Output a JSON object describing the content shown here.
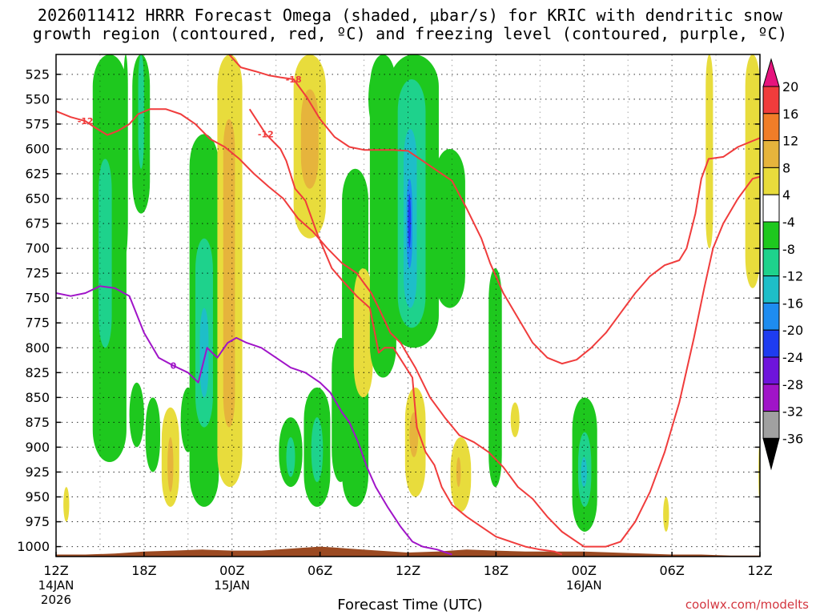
{
  "title_line1": "2026011412 HRRR Forecast Omega (shaded, μbar/s) for KRIC with dendritic snow",
  "title_line2": "growth region (contoured, red, ºC) and freezing level (contoured, purple, ºC)",
  "credit": "coolwx.com/modelts",
  "chart_data": {
    "type": "heatmap",
    "xlabel": "Forecast Time (UTC)",
    "xlim": [
      0,
      48
    ],
    "x_ticks": [
      {
        "hour": 0,
        "label": "12Z",
        "sub1": "14JAN",
        "sub2": "2026"
      },
      {
        "hour": 6,
        "label": "18Z",
        "sub1": "",
        "sub2": ""
      },
      {
        "hour": 12,
        "label": "00Z",
        "sub1": "15JAN",
        "sub2": ""
      },
      {
        "hour": 18,
        "label": "06Z",
        "sub1": "",
        "sub2": ""
      },
      {
        "hour": 24,
        "label": "12Z",
        "sub1": "",
        "sub2": ""
      },
      {
        "hour": 30,
        "label": "18Z",
        "sub1": "",
        "sub2": ""
      },
      {
        "hour": 36,
        "label": "00Z",
        "sub1": "16JAN",
        "sub2": ""
      },
      {
        "hour": 42,
        "label": "06Z",
        "sub1": "",
        "sub2": ""
      },
      {
        "hour": 48,
        "label": "12Z",
        "sub1": "",
        "sub2": ""
      }
    ],
    "ylim": [
      505,
      1010
    ],
    "y_ticks": [
      525,
      550,
      575,
      600,
      625,
      650,
      675,
      700,
      725,
      750,
      775,
      800,
      825,
      850,
      875,
      900,
      925,
      950,
      975,
      1000
    ],
    "grid": true,
    "colorbar": {
      "labels": [
        "20",
        "16",
        "12",
        "8",
        "4",
        "-4",
        "-8",
        "-12",
        "-16",
        "-20",
        "-24",
        "-28",
        "-32",
        "-36"
      ],
      "bands": [
        {
          "from": 16,
          "to": 20,
          "color": "#f03c3c"
        },
        {
          "from": 12,
          "to": 16,
          "color": "#f07d28"
        },
        {
          "from": 8,
          "to": 12,
          "color": "#e6b43c"
        },
        {
          "from": 4,
          "to": 8,
          "color": "#e8dc3c"
        },
        {
          "from": -4,
          "to": 4,
          "color": "#ffffff"
        },
        {
          "from": -8,
          "to": -4,
          "color": "#1ec81e"
        },
        {
          "from": -12,
          "to": -8,
          "color": "#1ed28c"
        },
        {
          "from": -16,
          "to": -12,
          "color": "#1ebec8"
        },
        {
          "from": -20,
          "to": -16,
          "color": "#1e8cf0"
        },
        {
          "from": -24,
          "to": -20,
          "color": "#1e3cf0"
        },
        {
          "from": -28,
          "to": -24,
          "color": "#6e14dc"
        },
        {
          "from": -32,
          "to": -28,
          "color": "#a014c8"
        },
        {
          "from": -36,
          "to": -32,
          "color": "#a0a0a0"
        }
      ],
      "top_arrow_color": "#e6147d",
      "bottom_arrow_color": "#000000"
    },
    "omega_cells": [
      {
        "h0": 2.5,
        "h1": 4.8,
        "p0": 505,
        "p1": 915,
        "v": -6
      },
      {
        "h0": 2.9,
        "h1": 3.8,
        "p0": 610,
        "p1": 800,
        "v": -10
      },
      {
        "h0": 4.6,
        "h1": 4.9,
        "p0": 505,
        "p1": 705,
        "v": -6
      },
      {
        "h0": 5.2,
        "h1": 6.4,
        "p0": 505,
        "p1": 665,
        "v": -6
      },
      {
        "h0": 5.6,
        "h1": 6.0,
        "p0": 505,
        "p1": 620,
        "v": -10
      },
      {
        "h0": 5.0,
        "h1": 6.0,
        "p0": 835,
        "p1": 900,
        "v": -6
      },
      {
        "h0": 6.1,
        "h1": 7.1,
        "p0": 850,
        "p1": 925,
        "v": -6
      },
      {
        "h0": 7.2,
        "h1": 8.4,
        "p0": 860,
        "p1": 960,
        "v": 5
      },
      {
        "h0": 7.6,
        "h1": 8.0,
        "p0": 890,
        "p1": 945,
        "v": 10
      },
      {
        "h0": 8.5,
        "h1": 9.5,
        "p0": 840,
        "p1": 905,
        "v": -6
      },
      {
        "h0": 9.1,
        "h1": 11.1,
        "p0": 585,
        "p1": 960,
        "v": -6
      },
      {
        "h0": 9.5,
        "h1": 10.7,
        "p0": 690,
        "p1": 880,
        "v": -10
      },
      {
        "h0": 9.8,
        "h1": 10.4,
        "p0": 760,
        "p1": 850,
        "v": -14
      },
      {
        "h0": 11.0,
        "h1": 12.7,
        "p0": 505,
        "p1": 940,
        "v": 5
      },
      {
        "h0": 11.4,
        "h1": 12.2,
        "p0": 570,
        "p1": 880,
        "v": 9
      },
      {
        "h0": 15.2,
        "h1": 16.8,
        "p0": 870,
        "p1": 940,
        "v": -6
      },
      {
        "h0": 15.7,
        "h1": 16.3,
        "p0": 890,
        "p1": 930,
        "v": -10
      },
      {
        "h0": 16.9,
        "h1": 18.7,
        "p0": 840,
        "p1": 960,
        "v": -6
      },
      {
        "h0": 17.4,
        "h1": 18.2,
        "p0": 870,
        "p1": 935,
        "v": -10
      },
      {
        "h0": 16.2,
        "h1": 18.4,
        "p0": 505,
        "p1": 690,
        "v": 5
      },
      {
        "h0": 16.7,
        "h1": 17.9,
        "p0": 540,
        "p1": 640,
        "v": 9
      },
      {
        "h0": 18.8,
        "h1": 20.0,
        "p0": 790,
        "p1": 935,
        "v": -6
      },
      {
        "h0": 19.5,
        "h1": 21.3,
        "p0": 620,
        "p1": 960,
        "v": -6
      },
      {
        "h0": 20.3,
        "h1": 21.6,
        "p0": 720,
        "p1": 850,
        "v": 5
      },
      {
        "h0": 21.3,
        "h1": 22.5,
        "p0": 540,
        "p1": 560,
        "v": -6
      },
      {
        "h0": 21.4,
        "h1": 23.2,
        "p0": 505,
        "p1": 830,
        "v": -6
      },
      {
        "h0": 21.3,
        "h1": 22.3,
        "p0": 520,
        "p1": 580,
        "v": -8
      },
      {
        "h0": 22.7,
        "h1": 26.1,
        "p0": 505,
        "p1": 800,
        "v": -6
      },
      {
        "h0": 23.3,
        "h1": 25.2,
        "p0": 530,
        "p1": 780,
        "v": -10
      },
      {
        "h0": 23.7,
        "h1": 24.6,
        "p0": 580,
        "p1": 760,
        "v": -14
      },
      {
        "h0": 23.9,
        "h1": 24.3,
        "p0": 630,
        "p1": 720,
        "v": -18
      },
      {
        "h0": 24.0,
        "h1": 24.2,
        "p0": 645,
        "p1": 700,
        "v": -22
      },
      {
        "h0": 25.8,
        "h1": 27.9,
        "p0": 600,
        "p1": 760,
        "v": -6
      },
      {
        "h0": 23.8,
        "h1": 25.2,
        "p0": 840,
        "p1": 950,
        "v": 5
      },
      {
        "h0": 24.1,
        "h1": 24.7,
        "p0": 865,
        "p1": 910,
        "v": 10
      },
      {
        "h0": 26.9,
        "h1": 28.3,
        "p0": 890,
        "p1": 965,
        "v": 5
      },
      {
        "h0": 27.3,
        "h1": 27.6,
        "p0": 910,
        "p1": 940,
        "v": 10
      },
      {
        "h0": 29.5,
        "h1": 30.4,
        "p0": 720,
        "p1": 940,
        "v": -6
      },
      {
        "h0": 29.6,
        "h1": 30.2,
        "p0": 820,
        "p1": 900,
        "v": -8
      },
      {
        "h0": 31.0,
        "h1": 31.6,
        "p0": 855,
        "p1": 890,
        "v": 5
      },
      {
        "h0": 35.2,
        "h1": 36.9,
        "p0": 850,
        "p1": 985,
        "v": -6
      },
      {
        "h0": 35.6,
        "h1": 36.5,
        "p0": 885,
        "p1": 960,
        "v": -10
      },
      {
        "h0": 35.8,
        "h1": 36.2,
        "p0": 910,
        "p1": 940,
        "v": -14
      },
      {
        "h0": 41.4,
        "h1": 41.8,
        "p0": 950,
        "p1": 985,
        "v": 5
      },
      {
        "h0": 44.3,
        "h1": 44.8,
        "p0": 505,
        "p1": 700,
        "v": 5
      },
      {
        "h0": 47.0,
        "h1": 48.0,
        "p0": 505,
        "p1": 740,
        "v": 5
      },
      {
        "h0": 0.5,
        "h1": 0.9,
        "p0": 940,
        "p1": 975,
        "v": 5
      },
      {
        "h0": 47.9,
        "h1": 48.0,
        "p0": 900,
        "p1": 950,
        "v": 5
      }
    ],
    "dgz_contours": [
      {
        "label": "-12",
        "label_at": 2,
        "points": [
          [
            0,
            562
          ],
          [
            1,
            568
          ],
          [
            2,
            572
          ],
          [
            2.6,
            578
          ],
          [
            3.5,
            586
          ],
          [
            4.2,
            582
          ],
          [
            5,
            575
          ],
          [
            5.6,
            565
          ],
          [
            6.4,
            560
          ],
          [
            7.5,
            560
          ],
          [
            8.5,
            565
          ],
          [
            9.5,
            575
          ],
          [
            10.5,
            590
          ],
          [
            11.5,
            598
          ],
          [
            12.5,
            610
          ],
          [
            13.5,
            625
          ],
          [
            14.5,
            638
          ],
          [
            15.5,
            650
          ],
          [
            16.5,
            670
          ],
          [
            17.5,
            683
          ],
          [
            18.5,
            700
          ],
          [
            19.5,
            715
          ],
          [
            20.5,
            725
          ],
          [
            21.5,
            745
          ],
          [
            22.0,
            760
          ],
          [
            22.8,
            785
          ],
          [
            23.5,
            795
          ],
          [
            24.5,
            820
          ],
          [
            25.5,
            850
          ],
          [
            26.5,
            870
          ],
          [
            27.5,
            888
          ],
          [
            28.5,
            895
          ],
          [
            29.5,
            905
          ],
          [
            30.5,
            920
          ],
          [
            31.5,
            940
          ],
          [
            32.5,
            952
          ],
          [
            33.5,
            970
          ],
          [
            34.5,
            985
          ],
          [
            35.5,
            995
          ],
          [
            36.0,
            1000
          ],
          [
            37.5,
            1000
          ],
          [
            38.5,
            995
          ],
          [
            39.5,
            975
          ],
          [
            40.5,
            945
          ],
          [
            41.5,
            905
          ],
          [
            42.5,
            855
          ],
          [
            43.5,
            790
          ],
          [
            44.2,
            740
          ],
          [
            44.8,
            700
          ],
          [
            45.5,
            675
          ],
          [
            46.5,
            650
          ],
          [
            47.5,
            630
          ],
          [
            48,
            628
          ]
        ]
      },
      {
        "label": "-12",
        "label_at": 1,
        "points": [
          [
            13.2,
            560
          ],
          [
            14.3,
            585
          ],
          [
            15.3,
            600
          ],
          [
            15.7,
            612
          ],
          [
            16.3,
            640
          ],
          [
            17.0,
            652
          ],
          [
            17.8,
            685
          ],
          [
            18.8,
            720
          ],
          [
            19.5,
            732
          ],
          [
            20.5,
            748
          ],
          [
            21.4,
            760
          ],
          [
            22.0,
            805
          ],
          [
            22.4,
            800
          ],
          [
            23.0,
            800
          ],
          [
            24.3,
            830
          ],
          [
            24.6,
            880
          ],
          [
            25.2,
            905
          ],
          [
            25.8,
            918
          ],
          [
            26.3,
            940
          ],
          [
            27.0,
            958
          ],
          [
            28.0,
            970
          ],
          [
            29.0,
            980
          ],
          [
            30.0,
            990
          ],
          [
            31.0,
            995
          ],
          [
            32.0,
            1000
          ],
          [
            33.0,
            1003
          ],
          [
            34.0,
            1005
          ],
          [
            34.5,
            1008
          ]
        ]
      },
      {
        "label": "-18",
        "label_at": 5,
        "points": [
          [
            11.8,
            505
          ],
          [
            12.6,
            518
          ],
          [
            13.6,
            522
          ],
          [
            14.5,
            526
          ],
          [
            15.3,
            528
          ],
          [
            16.2,
            530
          ],
          [
            17.1,
            548
          ],
          [
            18.0,
            570
          ],
          [
            19.0,
            588
          ],
          [
            20.0,
            598
          ],
          [
            21.0,
            601
          ],
          [
            22.0,
            601
          ],
          [
            23.0,
            601
          ],
          [
            24.0,
            602
          ],
          [
            25.0,
            612
          ],
          [
            26.0,
            622
          ],
          [
            27.0,
            632
          ],
          [
            28.0,
            660
          ],
          [
            29.0,
            690
          ],
          [
            29.6,
            715
          ],
          [
            30.5,
            745
          ],
          [
            31.5,
            770
          ],
          [
            32.5,
            795
          ],
          [
            33.5,
            810
          ],
          [
            34.5,
            816
          ],
          [
            35.5,
            812
          ],
          [
            36.5,
            800
          ],
          [
            37.5,
            785
          ],
          [
            38.5,
            765
          ],
          [
            39.5,
            745
          ],
          [
            40.5,
            728
          ],
          [
            41.5,
            717
          ],
          [
            42.5,
            712
          ],
          [
            43.0,
            700
          ],
          [
            43.6,
            665
          ],
          [
            44.0,
            630
          ],
          [
            44.5,
            610
          ],
          [
            45.5,
            608
          ],
          [
            46.5,
            598
          ],
          [
            47.5,
            592
          ],
          [
            48,
            589
          ]
        ]
      }
    ],
    "freezing_contours": [
      {
        "label": "0",
        "label_at": 8,
        "points": [
          [
            0,
            745
          ],
          [
            1,
            748
          ],
          [
            2,
            745
          ],
          [
            3,
            738
          ],
          [
            4,
            740
          ],
          [
            5,
            748
          ],
          [
            6,
            785
          ],
          [
            7,
            810
          ],
          [
            8,
            818
          ],
          [
            9,
            825
          ],
          [
            9.7,
            835
          ],
          [
            10.3,
            800
          ],
          [
            11,
            810
          ],
          [
            11.7,
            795
          ],
          [
            12.3,
            790
          ],
          [
            13,
            795
          ],
          [
            14,
            800
          ],
          [
            15,
            810
          ],
          [
            16,
            820
          ],
          [
            17,
            825
          ],
          [
            18,
            835
          ],
          [
            18.7,
            845
          ],
          [
            19.5,
            865
          ],
          [
            20.0,
            875
          ],
          [
            20.6,
            895
          ],
          [
            21.2,
            920
          ],
          [
            21.8,
            940
          ],
          [
            22.6,
            960
          ],
          [
            23.5,
            980
          ],
          [
            24.3,
            995
          ],
          [
            25,
            1000
          ],
          [
            26,
            1003
          ],
          [
            27,
            1008
          ]
        ]
      }
    ],
    "terrain": {
      "color": "#9b4a22",
      "points": [
        [
          0,
          1008
        ],
        [
          2,
          1008
        ],
        [
          4,
          1007
        ],
        [
          6,
          1005
        ],
        [
          8,
          1004
        ],
        [
          10,
          1003
        ],
        [
          12,
          1004
        ],
        [
          14,
          1004
        ],
        [
          16,
          1002
        ],
        [
          18,
          1000
        ],
        [
          19,
          1001
        ],
        [
          20,
          1002
        ],
        [
          22,
          1004
        ],
        [
          24,
          1006
        ],
        [
          26,
          1005
        ],
        [
          28,
          1003
        ],
        [
          30,
          1004
        ],
        [
          32,
          1005
        ],
        [
          34,
          1005
        ],
        [
          36,
          1005
        ],
        [
          38,
          1006
        ],
        [
          40,
          1007
        ],
        [
          42,
          1008
        ],
        [
          44,
          1008
        ],
        [
          46,
          1009
        ],
        [
          48,
          1009
        ]
      ]
    }
  }
}
